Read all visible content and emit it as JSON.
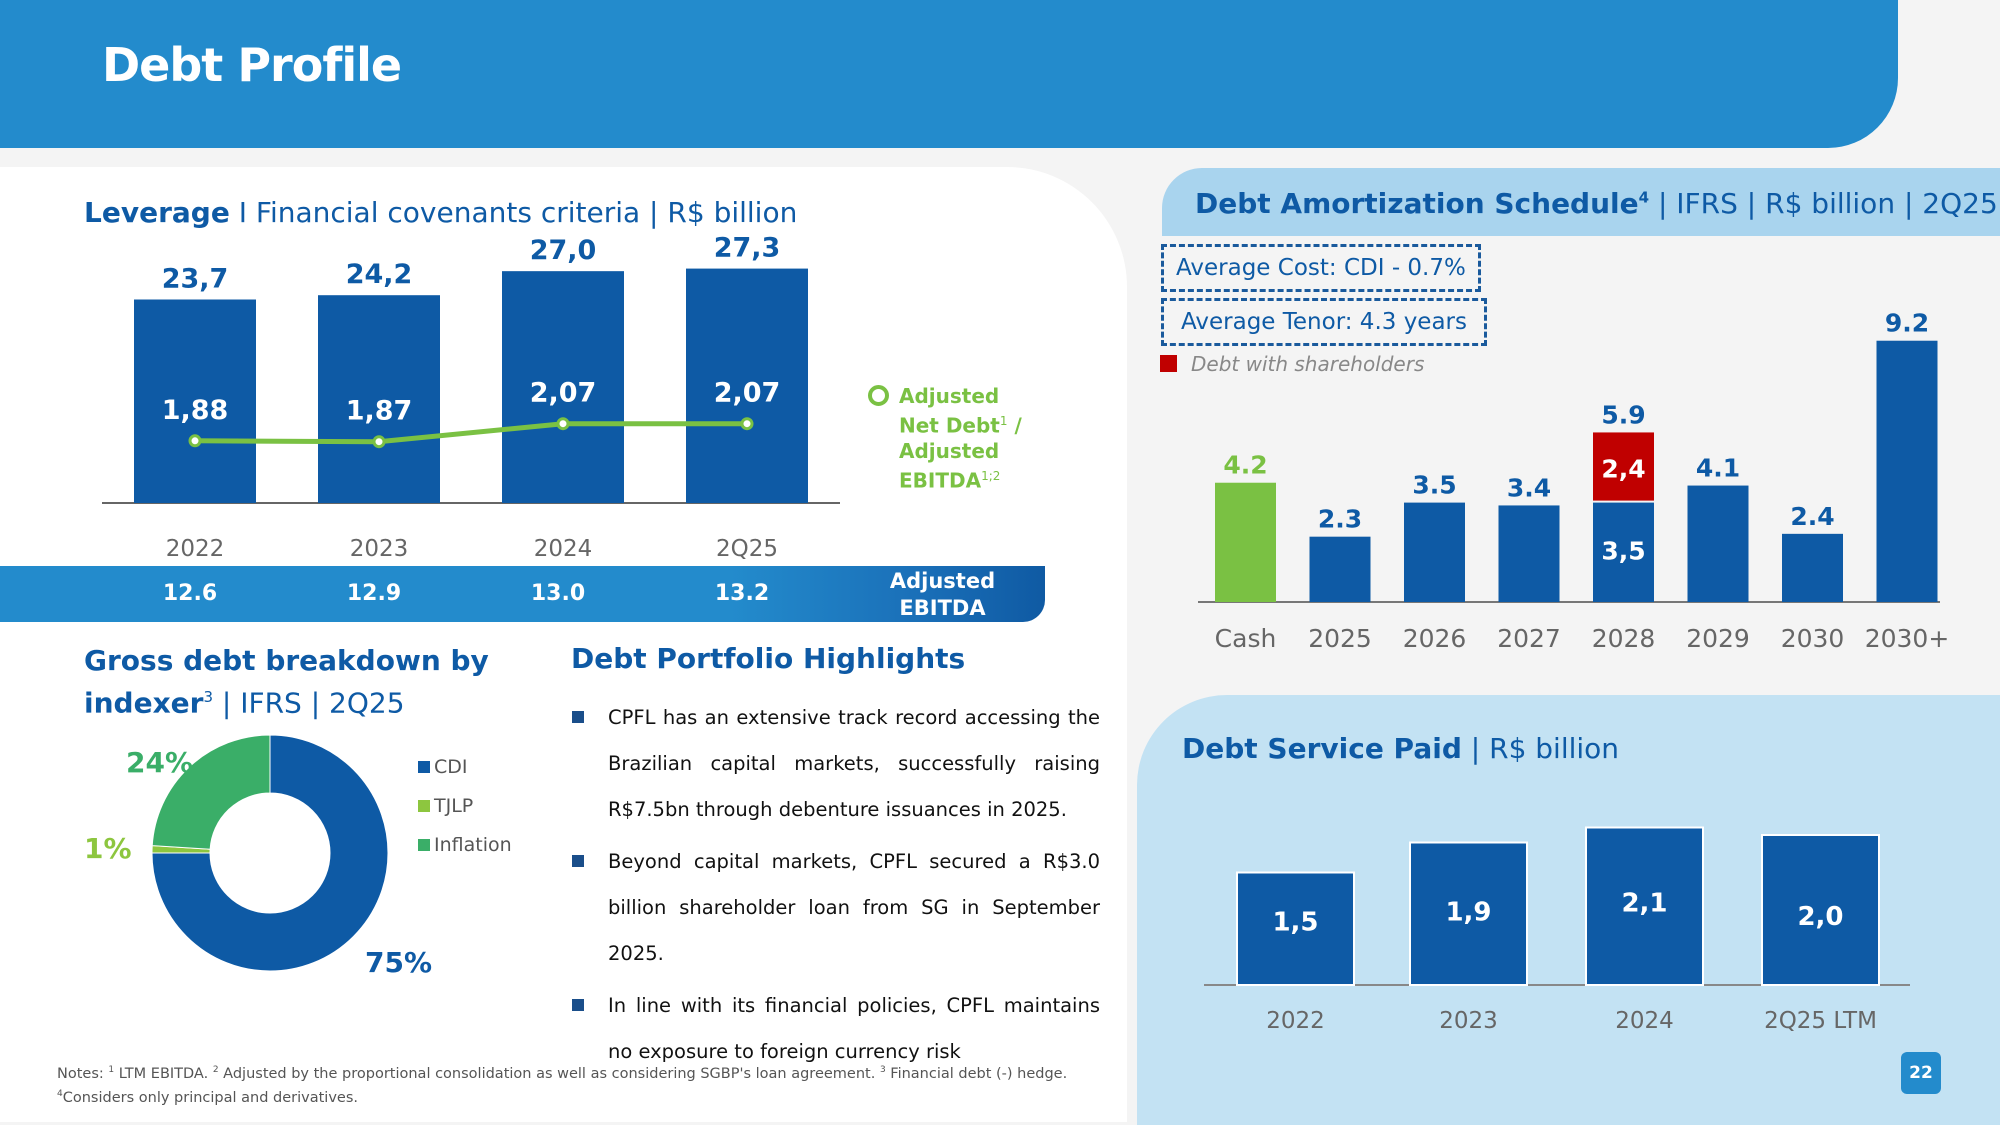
{
  "page": {
    "title": "Debt Profile",
    "page_number": "22"
  },
  "leverage": {
    "title_bold": "Leverage",
    "title_rest": " I Financial covenants criteria | R$ billion",
    "legend_lines": [
      "Adjusted",
      "Net Debt",
      "Adjusted",
      "EBITDA"
    ],
    "legend_sup1": "1",
    "legend_slash": " /",
    "legend_sup2": "1",
    "legend_sup3": ";2",
    "ebitda_label_line1": "Adjusted",
    "ebitda_label_line2": "EBITDA"
  },
  "portfolio": {
    "title": "Debt Portfolio Highlights",
    "bullets": [
      "CPFL has an extensive track record accessing the Brazilian capital markets, successfully raising R$7.5bn through debenture issuances in 2025.",
      "Beyond capital markets, CPFL secured a R$3.0 billion shareholder loan from SG in September 2025.",
      "In line with its financial policies, CPFL maintains no exposure to foreign currency risk"
    ]
  },
  "gross_debt": {
    "title_line1": "Gross debt breakdown by",
    "title_bold2": "indexer",
    "title_sup": "3",
    "title_rest2": " | IFRS | 2Q25"
  },
  "amortization": {
    "title_bold": "Debt Amortization Schedule",
    "title_sup": "4",
    "title_rest": " | IFRS | R$ billion | 2Q25",
    "avg_cost": "Average Cost: CDI - 0.7%",
    "avg_tenor": "Average Tenor: 4.3 years",
    "shareholder_legend": "Debt with shareholders"
  },
  "service": {
    "title_bold": "Debt Service Paid",
    "title_rest": " | R$ billion"
  },
  "notes": {
    "line1_parts": [
      "Notes: ",
      "1",
      " LTM EBITDA. ",
      "2",
      " Adjusted by the proportional consolidation as well as considering SGBP's loan agreement. ",
      "3",
      " Financial debt (-) hedge."
    ],
    "line2_parts": [
      "4",
      "Considers only principal and derivatives."
    ]
  },
  "colors": {
    "header_blue": "#238bcc",
    "bar_blue": "#0e5aa5",
    "green": "#7ac143",
    "inflation_green": "#3aae68",
    "red": "#c00000",
    "light_blue": "#c3e2f3"
  },
  "chart_data": [
    {
      "type": "bar",
      "title": "Leverage | Financial covenants criteria | R$ billion",
      "categories": [
        "2022",
        "2023",
        "2024",
        "2Q25"
      ],
      "series": [
        {
          "name": "Adjusted Net Debt",
          "values": [
            23.7,
            24.2,
            27.0,
            27.3
          ],
          "labels": [
            "23,7",
            "24,2",
            "27,0",
            "27,3"
          ]
        },
        {
          "name": "Adjusted Net Debt / Adjusted EBITDA",
          "kind": "line",
          "values": [
            1.88,
            1.87,
            2.07,
            2.07
          ],
          "labels": [
            "1,88",
            "1,87",
            "2,07",
            "2,07"
          ]
        },
        {
          "name": "Adjusted EBITDA",
          "kind": "table-row",
          "values": [
            12.6,
            12.9,
            13.0,
            13.2
          ],
          "labels": [
            "12.6",
            "12.9",
            "13.0",
            "13.2"
          ]
        }
      ],
      "ylim": [
        0,
        30
      ],
      "legend": "right"
    },
    {
      "type": "pie",
      "title": "Gross debt breakdown by indexer | IFRS | 2Q25",
      "categories": [
        "CDI",
        "TJLP",
        "Inflation"
      ],
      "values": [
        75,
        1,
        24
      ],
      "labels": [
        "75%",
        "1%",
        "24%"
      ],
      "colors": [
        "#0e5aa5",
        "#8dc63f",
        "#3aae68"
      ],
      "donut": true,
      "legend": "right"
    },
    {
      "type": "bar",
      "title": "Debt Amortization Schedule | IFRS | R$ billion | 2Q25",
      "categories": [
        "Cash",
        "2025",
        "2026",
        "2027",
        "2028",
        "2029",
        "2030",
        "2030+"
      ],
      "series": [
        {
          "name": "Debt",
          "values": [
            4.2,
            2.3,
            3.5,
            3.4,
            3.5,
            4.1,
            2.4,
            9.2
          ]
        },
        {
          "name": "Debt with shareholders",
          "values": [
            0,
            0,
            0,
            0,
            2.4,
            0,
            0,
            0
          ]
        }
      ],
      "totals": [
        "4.2",
        "2.3",
        "3.5",
        "3.4",
        "5.9",
        "4.1",
        "2.4",
        "9.2"
      ],
      "segment_labels": {
        "2028_base": "3,5",
        "2028_shareholders": "2,4"
      },
      "stacked": true,
      "ylim": [
        0,
        10
      ]
    },
    {
      "type": "bar",
      "title": "Debt Service Paid | R$ billion",
      "categories": [
        "2022",
        "2023",
        "2024",
        "2Q25 LTM"
      ],
      "values": [
        1.5,
        1.9,
        2.1,
        2.0
      ],
      "labels": [
        "1,5",
        "1,9",
        "2,1",
        "2,0"
      ],
      "ylim": [
        0,
        2.3
      ]
    }
  ]
}
